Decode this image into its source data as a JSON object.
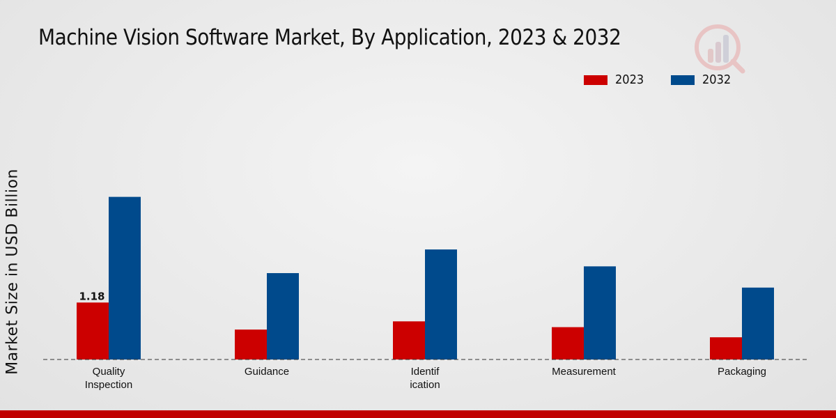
{
  "chart_data": {
    "type": "bar",
    "title": "Machine Vision Software Market, By Application, 2023 & 2032",
    "xlabel": "",
    "ylabel": "Market Size in USD Billion",
    "categories": [
      "Quality\nInspection",
      "Guidance",
      "Identif\nication",
      "Measurement",
      "Packaging"
    ],
    "series": [
      {
        "name": "2023",
        "color": "#cc0000",
        "values": [
          1.18,
          0.62,
          0.79,
          0.67,
          0.46
        ]
      },
      {
        "name": "2032",
        "color": "#004a8c",
        "values": [
          3.37,
          1.79,
          2.28,
          1.93,
          1.49
        ]
      }
    ],
    "data_labels": [
      {
        "series": 0,
        "index": 0,
        "text": "1.18"
      }
    ],
    "ylim": [
      0,
      5.4
    ],
    "grid": false,
    "legend_position": "top-right"
  }
}
